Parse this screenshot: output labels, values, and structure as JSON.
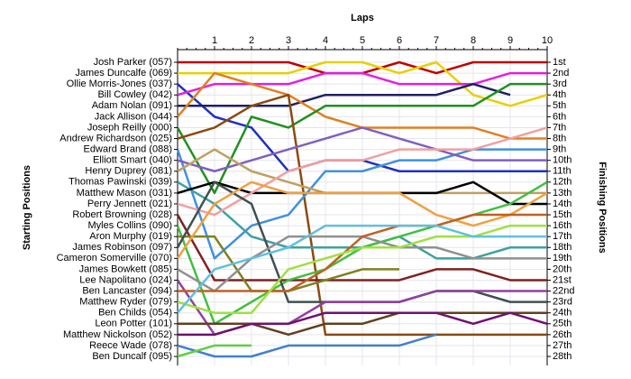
{
  "chart_data": {
    "type": "line",
    "x_label": "Laps",
    "y_label": "Starting Positions",
    "y2_label": "Finishing Positions",
    "x": [
      0,
      1,
      2,
      3,
      4,
      5,
      6,
      7,
      8,
      9,
      10
    ],
    "xlim": [
      0,
      10
    ],
    "xticks": [
      1,
      2,
      3,
      4,
      5,
      6,
      7,
      8,
      9,
      10
    ],
    "ylim": [
      1,
      28
    ],
    "y_inverted": true,
    "grid": true,
    "yticks": [
      {
        "value": 1,
        "label": "1st"
      },
      {
        "value": 2,
        "label": "2nd"
      },
      {
        "value": 3,
        "label": "3rd"
      },
      {
        "value": 4,
        "label": "4th"
      },
      {
        "value": 5,
        "label": "5th"
      },
      {
        "value": 6,
        "label": "6th"
      },
      {
        "value": 7,
        "label": "7th"
      },
      {
        "value": 8,
        "label": "8th"
      },
      {
        "value": 9,
        "label": "9th"
      },
      {
        "value": 10,
        "label": "10th"
      },
      {
        "value": 11,
        "label": "11th"
      },
      {
        "value": 12,
        "label": "12th"
      },
      {
        "value": 13,
        "label": "13th"
      },
      {
        "value": 14,
        "label": "14th"
      },
      {
        "value": 15,
        "label": "15th"
      },
      {
        "value": 16,
        "label": "16th"
      },
      {
        "value": 17,
        "label": "17th"
      },
      {
        "value": 18,
        "label": "18th"
      },
      {
        "value": 19,
        "label": "19th"
      },
      {
        "value": 20,
        "label": "20th"
      },
      {
        "value": 21,
        "label": "21st"
      },
      {
        "value": 22,
        "label": "22nd"
      },
      {
        "value": 23,
        "label": "23rd"
      },
      {
        "value": 24,
        "label": "24th"
      },
      {
        "value": 25,
        "label": "25th"
      },
      {
        "value": 26,
        "label": "26th"
      },
      {
        "value": 27,
        "label": "27th"
      },
      {
        "value": 28,
        "label": "28th"
      }
    ],
    "series": [
      {
        "name": "Josh Parker (057)",
        "color": "#c00000",
        "values": [
          1,
          1,
          1,
          1,
          2,
          2,
          1,
          2,
          1,
          1,
          1
        ]
      },
      {
        "name": "James Duncalfe (069)",
        "color": "#e6d000",
        "values": [
          2,
          2,
          2,
          2,
          1,
          1,
          2,
          1,
          4,
          5,
          4
        ]
      },
      {
        "name": "Ollie Morris-Jones (037)",
        "color": "#2030c0",
        "values": [
          3,
          6,
          7,
          11,
          10,
          10,
          11,
          11,
          11,
          11,
          11
        ]
      },
      {
        "name": "Bill Cowley (042)",
        "color": "#e020e0",
        "values": [
          4,
          3,
          3,
          3,
          2,
          2,
          3,
          3,
          3,
          2,
          2
        ]
      },
      {
        "name": "Adam Nolan (091)",
        "color": "#202060",
        "values": [
          5,
          5,
          5,
          5,
          4,
          4,
          4,
          4,
          3,
          4,
          null
        ]
      },
      {
        "name": "Jack Allison (044)",
        "color": "#e08020",
        "values": [
          6,
          2,
          3,
          4,
          6,
          7,
          7,
          7,
          7,
          8,
          8
        ]
      },
      {
        "name": "Joseph Reilly (000)",
        "color": "#209020",
        "values": [
          7,
          13,
          6,
          7,
          5,
          5,
          5,
          5,
          5,
          3,
          3
        ]
      },
      {
        "name": "Andrew Richardson (025)",
        "color": "#8a4a10",
        "values": [
          8,
          7,
          5,
          4,
          26,
          26,
          26,
          26,
          26,
          26,
          26
        ]
      },
      {
        "name": "Edward Brand (088)",
        "color": "#4090e0",
        "values": [
          9,
          19,
          16,
          15,
          11,
          11,
          10,
          10,
          9,
          9,
          9
        ]
      },
      {
        "name": "Elliott Smart (040)",
        "color": "#8060c0",
        "values": [
          10,
          11,
          10,
          9,
          8,
          7,
          8,
          9,
          10,
          10,
          10
        ]
      },
      {
        "name": "Henry Duprey (081)",
        "color": "#c0a060",
        "values": [
          11,
          9,
          11,
          12,
          13,
          13,
          13,
          13,
          13,
          13,
          13
        ]
      },
      {
        "name": "Thomas Pawinski (039)",
        "color": "#40a0a0",
        "values": [
          12,
          14,
          17,
          18,
          18,
          18,
          17,
          19,
          19,
          18,
          18
        ]
      },
      {
        "name": "Matthew Mason (031)",
        "color": "#000000",
        "values": [
          13,
          12,
          13,
          13,
          13,
          13,
          13,
          13,
          12,
          14,
          14
        ]
      },
      {
        "name": "Perry Jennett (021)",
        "color": "#f0a0a0",
        "values": [
          14,
          15,
          13,
          11,
          10,
          10,
          9,
          9,
          9,
          8,
          7
        ]
      },
      {
        "name": "Robert Browning (028)",
        "color": "#802020",
        "values": [
          15,
          21,
          21,
          21,
          21,
          21,
          21,
          20,
          20,
          21,
          21
        ]
      },
      {
        "name": "Myles Collins (090)",
        "color": "#40c040",
        "values": [
          16,
          25,
          23,
          21,
          20,
          18,
          17,
          16,
          15,
          14,
          12
        ]
      },
      {
        "name": "Aron Murphy (019)",
        "color": "#808020",
        "values": [
          17,
          17,
          22,
          22,
          21,
          20,
          20,
          null,
          null,
          null,
          null
        ]
      },
      {
        "name": "James Robinson (097)",
        "color": "#405050",
        "values": [
          18,
          12,
          14,
          23,
          23,
          23,
          23,
          22,
          22,
          23,
          23
        ]
      },
      {
        "name": "Cameron Somerville (070)",
        "color": "#f0a040",
        "values": [
          19,
          14,
          12,
          13,
          13,
          13,
          13,
          15,
          16,
          15,
          13
        ]
      },
      {
        "name": "James Bowkett (085)",
        "color": "#909090",
        "values": [
          20,
          22,
          19,
          17,
          17,
          17,
          18,
          18,
          19,
          19,
          19
        ]
      },
      {
        "name": "Lee Napolitano (024)",
        "color": "#9040a0",
        "values": [
          21,
          26,
          25,
          25,
          23,
          23,
          23,
          22,
          22,
          22,
          22
        ]
      },
      {
        "name": "Ben Lancaster (094)",
        "color": "#c06020",
        "values": [
          22,
          22,
          22,
          22,
          20,
          17,
          16,
          16,
          15,
          15,
          15
        ]
      },
      {
        "name": "Matthew Ryder (079)",
        "color": "#a0e040",
        "values": [
          23,
          24,
          24,
          20,
          19,
          18,
          18,
          17,
          17,
          16,
          16
        ]
      },
      {
        "name": "Ben Childs (054)",
        "color": "#60c0e0",
        "values": [
          24,
          20,
          19,
          18,
          16,
          16,
          16,
          16,
          17,
          17,
          17
        ]
      },
      {
        "name": "Leon Potter (101)",
        "color": "#604020",
        "values": [
          25,
          25,
          25,
          26,
          25,
          25,
          24,
          24,
          24,
          24,
          24
        ]
      },
      {
        "name": "Matthew Nickolson (052)",
        "color": "#701070",
        "values": [
          26,
          26,
          25,
          25,
          24,
          24,
          24,
          24,
          25,
          24,
          25
        ]
      },
      {
        "name": "Reece Wade (078)",
        "color": "#4080d0",
        "values": [
          27,
          28,
          28,
          27,
          27,
          27,
          27,
          26,
          null,
          null,
          null
        ]
      },
      {
        "name": "Ben Duncalf (095)",
        "color": "#60d040",
        "values": [
          28,
          27,
          27,
          null,
          null,
          null,
          null,
          null,
          null,
          null,
          null
        ]
      }
    ]
  }
}
